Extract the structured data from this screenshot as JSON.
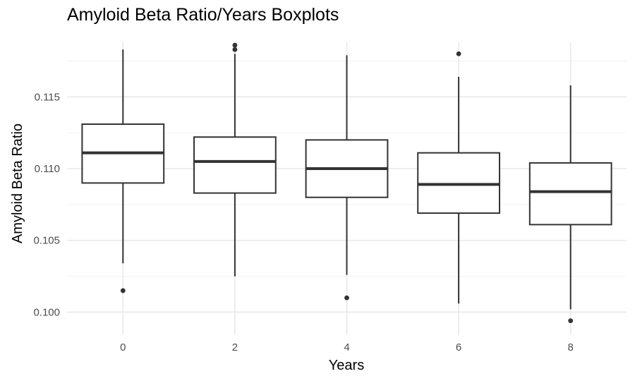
{
  "chart_data": {
    "type": "boxplot",
    "title": "Amyloid Beta Ratio/Years Boxplots",
    "xlabel": "Years",
    "ylabel": "Amyloid Beta Ratio",
    "categories": [
      "0",
      "2",
      "4",
      "6",
      "8"
    ],
    "y_ticks": [
      "0.100",
      "0.105",
      "0.110",
      "0.115"
    ],
    "ylim": [
      0.0984,
      0.1188
    ],
    "grid": true,
    "boxes": [
      {
        "category": "0",
        "whisker_low": 0.1034,
        "q1": 0.109,
        "median": 0.1111,
        "q3": 0.1131,
        "whisker_high": 0.1183,
        "outliers": [
          0.1015
        ]
      },
      {
        "category": "2",
        "whisker_low": 0.1025,
        "q1": 0.1083,
        "median": 0.1105,
        "q3": 0.1122,
        "whisker_high": 0.118,
        "outliers": [
          0.1183,
          0.1186
        ]
      },
      {
        "category": "4",
        "whisker_low": 0.1026,
        "q1": 0.108,
        "median": 0.11,
        "q3": 0.112,
        "whisker_high": 0.1179,
        "outliers": [
          0.101
        ]
      },
      {
        "category": "6",
        "whisker_low": 0.1006,
        "q1": 0.1069,
        "median": 0.1089,
        "q3": 0.1111,
        "whisker_high": 0.1164,
        "outliers": [
          0.118
        ]
      },
      {
        "category": "8",
        "whisker_low": 0.1002,
        "q1": 0.1061,
        "median": 0.1084,
        "q3": 0.1104,
        "whisker_high": 0.1158,
        "outliers": [
          0.0994
        ]
      }
    ],
    "colors": {
      "box_fill": "#ffffff",
      "box_line": "#333333",
      "grid_major": "#ebebeb",
      "grid_minor": "#f2f2f2"
    }
  }
}
